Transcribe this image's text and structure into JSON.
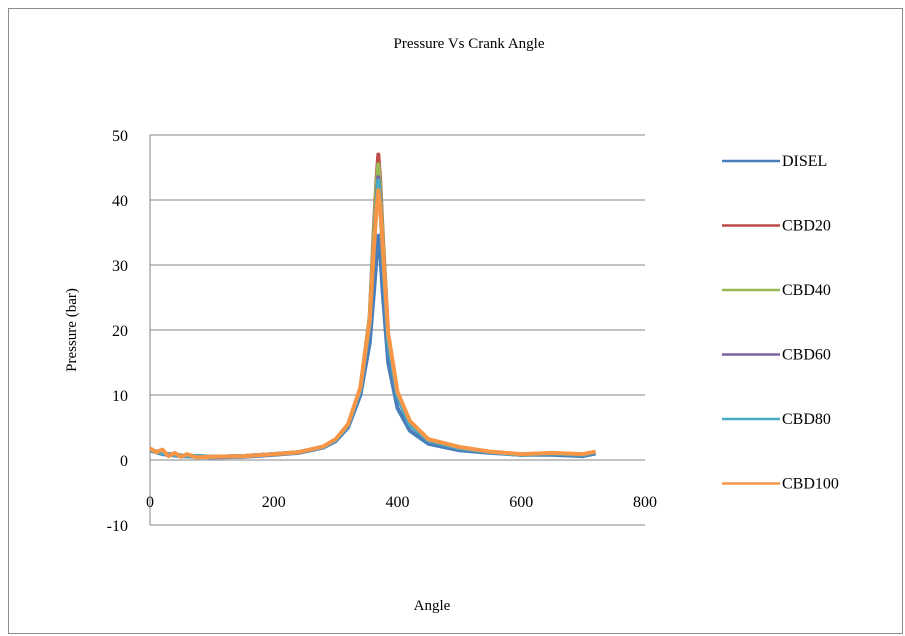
{
  "chart_data": {
    "type": "line",
    "title": "Pressure Vs Crank Angle",
    "xlabel": "Angle",
    "ylabel": "Pressure (bar)",
    "xlim": [
      0,
      800
    ],
    "ylim": [
      -10,
      50
    ],
    "x_ticks": [
      "0",
      "200",
      "400",
      "600",
      "800"
    ],
    "y_ticks": [
      "-10",
      "0",
      "10",
      "20",
      "30",
      "40",
      "50"
    ],
    "grid": "horizontal major gridlines",
    "legend_position": "right",
    "series": [
      {
        "name": "DISEL",
        "color": "#4a7ebb",
        "points": [
          [
            0,
            1.5
          ],
          [
            20,
            0.9
          ],
          [
            50,
            0.6
          ],
          [
            100,
            0.4
          ],
          [
            150,
            0.5
          ],
          [
            200,
            0.8
          ],
          [
            240,
            1.1
          ],
          [
            280,
            1.9
          ],
          [
            300,
            2.9
          ],
          [
            320,
            5.0
          ],
          [
            340,
            10.0
          ],
          [
            355,
            18.0
          ],
          [
            362,
            26.0
          ],
          [
            366,
            31.0
          ],
          [
            369,
            34.5
          ],
          [
            372,
            32.0
          ],
          [
            376,
            26.0
          ],
          [
            385,
            15.0
          ],
          [
            400,
            8.0
          ],
          [
            420,
            4.5
          ],
          [
            450,
            2.5
          ],
          [
            500,
            1.5
          ],
          [
            550,
            1.1
          ],
          [
            600,
            0.8
          ],
          [
            650,
            0.8
          ],
          [
            700,
            0.6
          ],
          [
            720,
            1.0
          ]
        ]
      },
      {
        "name": "CBD20",
        "color": "#be4b48",
        "points": [
          [
            0,
            1.6
          ],
          [
            20,
            1.0
          ],
          [
            50,
            0.7
          ],
          [
            100,
            0.5
          ],
          [
            150,
            0.6
          ],
          [
            200,
            0.9
          ],
          [
            240,
            1.2
          ],
          [
            280,
            2.0
          ],
          [
            300,
            3.1
          ],
          [
            320,
            5.4
          ],
          [
            340,
            11.0
          ],
          [
            355,
            22.0
          ],
          [
            362,
            36.0
          ],
          [
            366,
            43.0
          ],
          [
            369,
            47.0
          ],
          [
            372,
            43.0
          ],
          [
            376,
            35.0
          ],
          [
            385,
            19.0
          ],
          [
            400,
            10.0
          ],
          [
            420,
            5.5
          ],
          [
            450,
            3.0
          ],
          [
            500,
            1.8
          ],
          [
            550,
            1.2
          ],
          [
            600,
            0.8
          ],
          [
            650,
            1.0
          ],
          [
            700,
            0.8
          ],
          [
            720,
            1.2
          ]
        ]
      },
      {
        "name": "CBD40",
        "color": "#98b954",
        "points": [
          [
            0,
            1.6
          ],
          [
            20,
            1.0
          ],
          [
            50,
            0.7
          ],
          [
            100,
            0.5
          ],
          [
            150,
            0.6
          ],
          [
            200,
            0.9
          ],
          [
            240,
            1.2
          ],
          [
            280,
            2.0
          ],
          [
            300,
            3.1
          ],
          [
            320,
            5.4
          ],
          [
            340,
            11.0
          ],
          [
            355,
            22.0
          ],
          [
            362,
            35.0
          ],
          [
            366,
            42.0
          ],
          [
            369,
            45.5
          ],
          [
            372,
            42.0
          ],
          [
            376,
            34.0
          ],
          [
            385,
            19.0
          ],
          [
            400,
            10.0
          ],
          [
            420,
            5.5
          ],
          [
            450,
            3.0
          ],
          [
            500,
            1.8
          ],
          [
            550,
            1.2
          ],
          [
            600,
            0.8
          ],
          [
            650,
            1.0
          ],
          [
            700,
            0.8
          ],
          [
            720,
            1.2
          ]
        ]
      },
      {
        "name": "CBD60",
        "color": "#7d60a0",
        "points": [
          [
            0,
            1.6
          ],
          [
            20,
            1.0
          ],
          [
            50,
            0.7
          ],
          [
            100,
            0.5
          ],
          [
            150,
            0.6
          ],
          [
            200,
            0.9
          ],
          [
            240,
            1.2
          ],
          [
            280,
            2.0
          ],
          [
            300,
            3.1
          ],
          [
            320,
            5.3
          ],
          [
            340,
            10.8
          ],
          [
            355,
            21.0
          ],
          [
            362,
            33.0
          ],
          [
            366,
            39.5
          ],
          [
            369,
            43.5
          ],
          [
            372,
            40.0
          ],
          [
            376,
            32.0
          ],
          [
            385,
            18.0
          ],
          [
            400,
            9.8
          ],
          [
            420,
            5.4
          ],
          [
            450,
            3.0
          ],
          [
            500,
            1.8
          ],
          [
            550,
            1.2
          ],
          [
            600,
            0.8
          ],
          [
            650,
            1.0
          ],
          [
            700,
            0.8
          ],
          [
            720,
            1.2
          ]
        ]
      },
      {
        "name": "CBD80",
        "color": "#46aac5",
        "points": [
          [
            0,
            1.6
          ],
          [
            20,
            1.0
          ],
          [
            50,
            0.7
          ],
          [
            100,
            0.5
          ],
          [
            150,
            0.6
          ],
          [
            200,
            0.9
          ],
          [
            240,
            1.2
          ],
          [
            280,
            2.0
          ],
          [
            300,
            3.1
          ],
          [
            320,
            5.3
          ],
          [
            340,
            10.8
          ],
          [
            355,
            21.0
          ],
          [
            362,
            33.0
          ],
          [
            366,
            39.0
          ],
          [
            369,
            43.0
          ],
          [
            372,
            39.5
          ],
          [
            376,
            32.0
          ],
          [
            385,
            18.0
          ],
          [
            400,
            9.8
          ],
          [
            420,
            5.4
          ],
          [
            450,
            3.0
          ],
          [
            500,
            1.8
          ],
          [
            550,
            1.2
          ],
          [
            600,
            0.8
          ],
          [
            650,
            1.0
          ],
          [
            700,
            0.8
          ],
          [
            720,
            1.2
          ]
        ]
      },
      {
        "name": "CBD100",
        "color": "#f79646",
        "points": [
          [
            0,
            1.8
          ],
          [
            10,
            1.2
          ],
          [
            20,
            1.6
          ],
          [
            30,
            0.6
          ],
          [
            40,
            1.1
          ],
          [
            50,
            0.5
          ],
          [
            60,
            0.9
          ],
          [
            75,
            0.4
          ],
          [
            100,
            0.5
          ],
          [
            150,
            0.6
          ],
          [
            200,
            0.9
          ],
          [
            240,
            1.2
          ],
          [
            280,
            2.1
          ],
          [
            300,
            3.2
          ],
          [
            320,
            5.5
          ],
          [
            340,
            11.2
          ],
          [
            355,
            21.5
          ],
          [
            362,
            33.0
          ],
          [
            366,
            38.5
          ],
          [
            369,
            41.5
          ],
          [
            372,
            39.0
          ],
          [
            376,
            33.0
          ],
          [
            385,
            19.5
          ],
          [
            400,
            10.5
          ],
          [
            420,
            6.0
          ],
          [
            450,
            3.2
          ],
          [
            500,
            2.0
          ],
          [
            550,
            1.3
          ],
          [
            600,
            0.9
          ],
          [
            650,
            1.1
          ],
          [
            700,
            0.9
          ],
          [
            720,
            1.3
          ]
        ]
      }
    ]
  }
}
